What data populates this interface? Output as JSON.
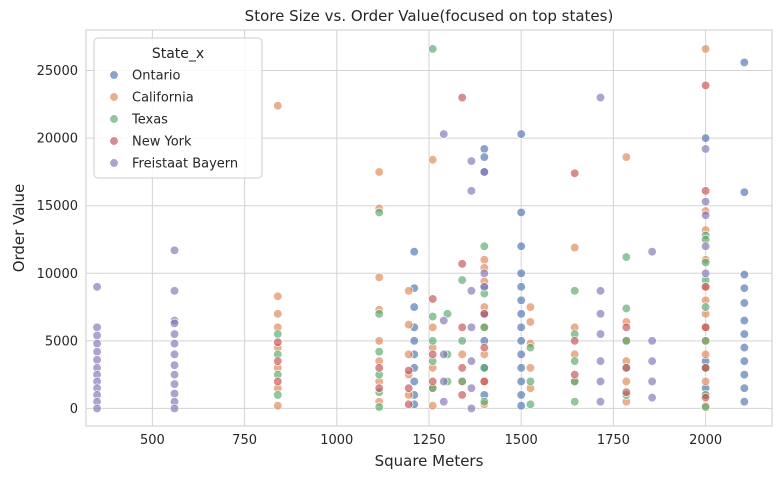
{
  "chart_data": {
    "type": "scatter",
    "title": "Store Size vs. Order Value(focused on top states)",
    "xlabel": "Square Meters",
    "ylabel": "Order Value",
    "xlim": [
      320,
      2180
    ],
    "ylim": [
      -1300,
      28000
    ],
    "xticks": [
      500,
      750,
      1000,
      1250,
      1500,
      1750,
      2000
    ],
    "yticks": [
      0,
      5000,
      10000,
      15000,
      20000,
      25000
    ],
    "grid": true,
    "legend": {
      "title": "State_x",
      "placement": "top-left"
    },
    "series": [
      {
        "name": "Ontario",
        "color": "#4c72b0",
        "points": [
          [
            1210,
            11600
          ],
          [
            1210,
            8900
          ],
          [
            1210,
            7500
          ],
          [
            1210,
            6000
          ],
          [
            1210,
            5000
          ],
          [
            1210,
            4000
          ],
          [
            1210,
            3000
          ],
          [
            1210,
            2000
          ],
          [
            1210,
            1000
          ],
          [
            1210,
            300
          ],
          [
            1400,
            19200
          ],
          [
            1400,
            18600
          ],
          [
            1400,
            17500
          ],
          [
            1400,
            9000
          ],
          [
            1400,
            7000
          ],
          [
            1400,
            5000
          ],
          [
            1400,
            3000
          ],
          [
            1400,
            1000
          ],
          [
            1500,
            20300
          ],
          [
            1500,
            14500
          ],
          [
            1500,
            12000
          ],
          [
            1500,
            10000
          ],
          [
            1500,
            9000
          ],
          [
            1500,
            8000
          ],
          [
            1500,
            7000
          ],
          [
            1500,
            6000
          ],
          [
            1500,
            5000
          ],
          [
            1500,
            4000
          ],
          [
            1500,
            3000
          ],
          [
            1500,
            2000
          ],
          [
            1500,
            1000
          ],
          [
            1500,
            200
          ],
          [
            2000,
            20000
          ],
          [
            2000,
            3500
          ],
          [
            2000,
            1500
          ],
          [
            2105,
            25600
          ],
          [
            2105,
            16000
          ],
          [
            2105,
            9900
          ],
          [
            2105,
            8900
          ],
          [
            2105,
            7800
          ],
          [
            2105,
            6500
          ],
          [
            2105,
            5500
          ],
          [
            2105,
            4500
          ],
          [
            2105,
            3500
          ],
          [
            2105,
            2500
          ],
          [
            2105,
            1500
          ],
          [
            2105,
            500
          ]
        ]
      },
      {
        "name": "California",
        "color": "#dd8452",
        "points": [
          [
            840,
            22400
          ],
          [
            840,
            8300
          ],
          [
            840,
            7000
          ],
          [
            840,
            6000
          ],
          [
            840,
            4500
          ],
          [
            840,
            3000
          ],
          [
            840,
            1500
          ],
          [
            840,
            200
          ],
          [
            1115,
            17500
          ],
          [
            1115,
            14800
          ],
          [
            1115,
            9700
          ],
          [
            1115,
            7300
          ],
          [
            1115,
            5000
          ],
          [
            1115,
            3500
          ],
          [
            1115,
            2000
          ],
          [
            1115,
            500
          ],
          [
            1195,
            8700
          ],
          [
            1195,
            6200
          ],
          [
            1195,
            4000
          ],
          [
            1195,
            2500
          ],
          [
            1195,
            1000
          ],
          [
            1260,
            18400
          ],
          [
            1260,
            6000
          ],
          [
            1260,
            4500
          ],
          [
            1260,
            3000
          ],
          [
            1260,
            1500
          ],
          [
            1260,
            200
          ],
          [
            1340,
            4000
          ],
          [
            1340,
            2000
          ],
          [
            1400,
            11000
          ],
          [
            1400,
            10400
          ],
          [
            1400,
            9400
          ],
          [
            1400,
            7500
          ],
          [
            1400,
            6000
          ],
          [
            1400,
            4000
          ],
          [
            1400,
            2000
          ],
          [
            1400,
            300
          ],
          [
            1525,
            7500
          ],
          [
            1525,
            6400
          ],
          [
            1525,
            4800
          ],
          [
            1525,
            3000
          ],
          [
            1525,
            1500
          ],
          [
            1645,
            11900
          ],
          [
            1645,
            6000
          ],
          [
            1645,
            4000
          ],
          [
            1645,
            2000
          ],
          [
            1785,
            18600
          ],
          [
            1785,
            6400
          ],
          [
            1785,
            5000
          ],
          [
            1785,
            3500
          ],
          [
            1785,
            2000
          ],
          [
            1785,
            500
          ],
          [
            2000,
            26600
          ],
          [
            2000,
            14600
          ],
          [
            2000,
            13200
          ],
          [
            2000,
            11000
          ],
          [
            2000,
            9000
          ],
          [
            2000,
            8000
          ],
          [
            2000,
            7000
          ],
          [
            2000,
            6000
          ],
          [
            2000,
            5000
          ],
          [
            2000,
            4000
          ],
          [
            2000,
            3000
          ],
          [
            2000,
            2000
          ],
          [
            2000,
            1000
          ],
          [
            2000,
            200
          ]
        ]
      },
      {
        "name": "Texas",
        "color": "#55a868",
        "points": [
          [
            840,
            5500
          ],
          [
            840,
            4000
          ],
          [
            840,
            2500
          ],
          [
            840,
            1000
          ],
          [
            1115,
            14500
          ],
          [
            1115,
            7000
          ],
          [
            1115,
            4200
          ],
          [
            1115,
            2500
          ],
          [
            1115,
            1200
          ],
          [
            1115,
            100
          ],
          [
            1260,
            26600
          ],
          [
            1260,
            6800
          ],
          [
            1260,
            5000
          ],
          [
            1260,
            3500
          ],
          [
            1260,
            1500
          ],
          [
            1300,
            7000
          ],
          [
            1300,
            4000
          ],
          [
            1300,
            2000
          ],
          [
            1340,
            9500
          ],
          [
            1340,
            5000
          ],
          [
            1340,
            2000
          ],
          [
            1400,
            12000
          ],
          [
            1400,
            8500
          ],
          [
            1400,
            6000
          ],
          [
            1400,
            3000
          ],
          [
            1400,
            500
          ],
          [
            1525,
            4500
          ],
          [
            1525,
            2000
          ],
          [
            1525,
            300
          ],
          [
            1645,
            8700
          ],
          [
            1645,
            5500
          ],
          [
            1645,
            3500
          ],
          [
            1645,
            2000
          ],
          [
            1645,
            500
          ],
          [
            1785,
            11200
          ],
          [
            1785,
            7400
          ],
          [
            1785,
            5000
          ],
          [
            1785,
            3000
          ],
          [
            1785,
            1000
          ],
          [
            2000,
            12800
          ],
          [
            2000,
            12500
          ],
          [
            2000,
            10800
          ],
          [
            2000,
            9500
          ],
          [
            2000,
            7500
          ],
          [
            2000,
            5000
          ],
          [
            2000,
            3000
          ],
          [
            2000,
            1000
          ],
          [
            2000,
            100
          ]
        ]
      },
      {
        "name": "New York",
        "color": "#c44e52",
        "points": [
          [
            840,
            4900
          ],
          [
            840,
            3500
          ],
          [
            840,
            2000
          ],
          [
            1115,
            3000
          ],
          [
            1115,
            1500
          ],
          [
            1195,
            2800
          ],
          [
            1195,
            1500
          ],
          [
            1195,
            300
          ],
          [
            1260,
            8100
          ],
          [
            1260,
            4000
          ],
          [
            1260,
            2000
          ],
          [
            1340,
            23000
          ],
          [
            1340,
            10700
          ],
          [
            1340,
            6000
          ],
          [
            1340,
            3000
          ],
          [
            1340,
            1000
          ],
          [
            1400,
            7000
          ],
          [
            1400,
            4500
          ],
          [
            1400,
            2000
          ],
          [
            1645,
            17400
          ],
          [
            1645,
            5000
          ],
          [
            1645,
            2500
          ],
          [
            1785,
            6000
          ],
          [
            1785,
            3000
          ],
          [
            1785,
            1200
          ],
          [
            2000,
            23900
          ],
          [
            2000,
            16100
          ],
          [
            2000,
            9000
          ],
          [
            2000,
            6000
          ],
          [
            2000,
            3000
          ],
          [
            2000,
            800
          ]
        ]
      },
      {
        "name": "Freistaat Bayern",
        "color": "#8172b3",
        "points": [
          [
            350,
            9000
          ],
          [
            350,
            6000
          ],
          [
            350,
            5400
          ],
          [
            350,
            4800
          ],
          [
            350,
            4200
          ],
          [
            350,
            3600
          ],
          [
            350,
            3000
          ],
          [
            350,
            2500
          ],
          [
            350,
            2000
          ],
          [
            350,
            1500
          ],
          [
            350,
            1000
          ],
          [
            350,
            500
          ],
          [
            350,
            0
          ],
          [
            560,
            11700
          ],
          [
            560,
            8700
          ],
          [
            560,
            6500
          ],
          [
            560,
            6300
          ],
          [
            560,
            5500
          ],
          [
            560,
            4800
          ],
          [
            560,
            4000
          ],
          [
            560,
            3200
          ],
          [
            560,
            2500
          ],
          [
            560,
            1800
          ],
          [
            560,
            1100
          ],
          [
            560,
            500
          ],
          [
            560,
            0
          ],
          [
            1290,
            20300
          ],
          [
            1290,
            6500
          ],
          [
            1290,
            4000
          ],
          [
            1290,
            2000
          ],
          [
            1290,
            500
          ],
          [
            1365,
            18300
          ],
          [
            1365,
            16100
          ],
          [
            1365,
            8700
          ],
          [
            1365,
            6000
          ],
          [
            1365,
            3500
          ],
          [
            1365,
            1500
          ],
          [
            1365,
            0
          ],
          [
            1400,
            17500
          ],
          [
            1400,
            10000
          ],
          [
            1400,
            9000
          ],
          [
            1715,
            23000
          ],
          [
            1715,
            8700
          ],
          [
            1715,
            7000
          ],
          [
            1715,
            5500
          ],
          [
            1715,
            3500
          ],
          [
            1715,
            2000
          ],
          [
            1715,
            500
          ],
          [
            1855,
            11600
          ],
          [
            1855,
            5000
          ],
          [
            1855,
            3500
          ],
          [
            1855,
            2000
          ],
          [
            1855,
            800
          ],
          [
            2000,
            19200
          ],
          [
            2000,
            15300
          ],
          [
            2000,
            14300
          ],
          [
            2000,
            12000
          ],
          [
            2000,
            10000
          ]
        ]
      }
    ]
  }
}
